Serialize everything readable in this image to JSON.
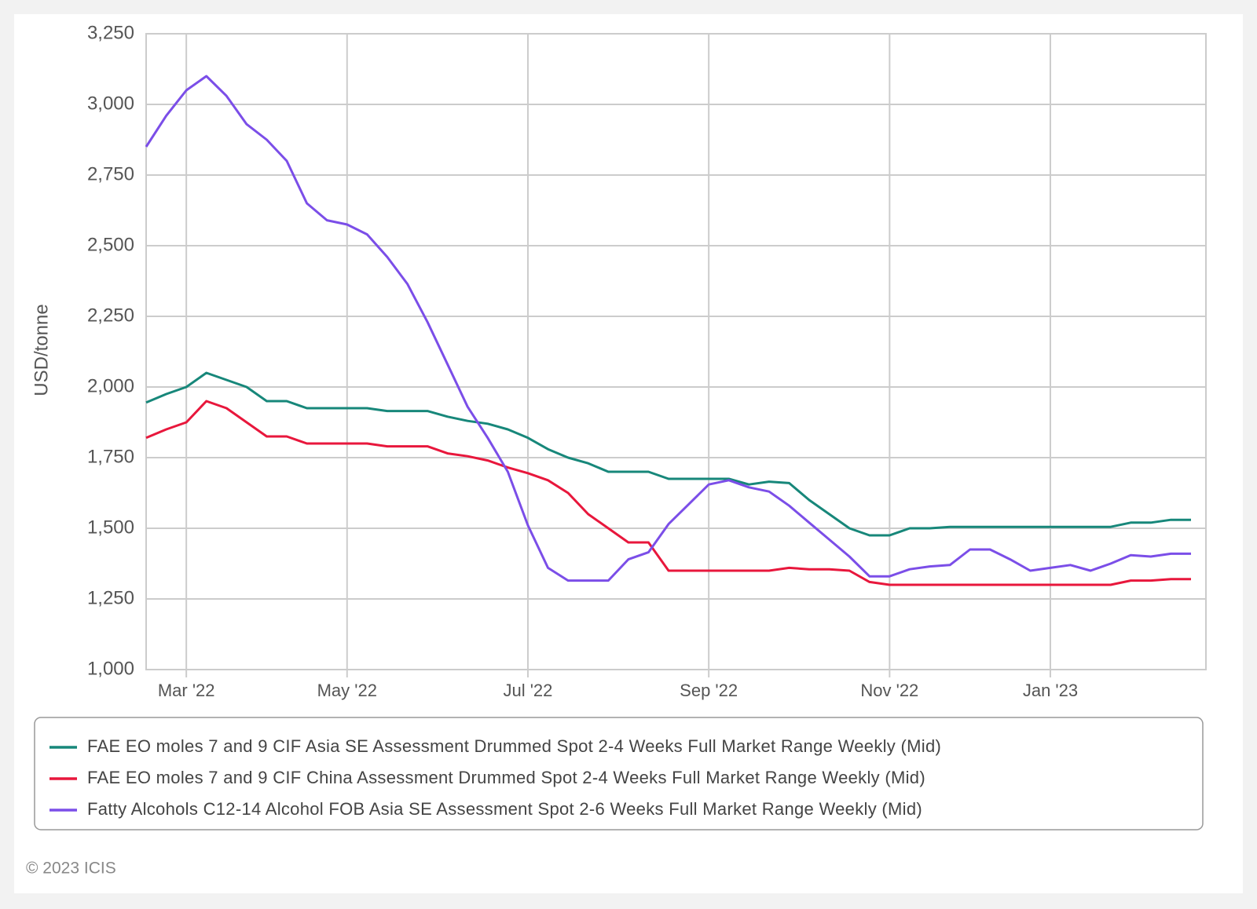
{
  "chart_data": {
    "type": "line",
    "y_label": "USD/tonne",
    "credit": "© 2023 ICIS",
    "legend": "bottom",
    "grid": true,
    "categories": [
      null,
      null,
      "Mar '22",
      null,
      null,
      null,
      null,
      null,
      null,
      null,
      "May '22",
      null,
      null,
      null,
      null,
      null,
      null,
      null,
      null,
      "Jul '22",
      null,
      null,
      null,
      null,
      null,
      null,
      null,
      null,
      "Sep '22",
      null,
      null,
      null,
      null,
      null,
      null,
      null,
      null,
      "Nov '22",
      null,
      null,
      null,
      null,
      null,
      null,
      null,
      "Jan '23",
      null,
      null,
      null,
      null,
      null,
      null,
      null
    ],
    "ylim": [
      1000,
      3250
    ],
    "yticks": [
      {
        "value": 1000,
        "label": "1,000"
      },
      {
        "value": 1250,
        "label": "1,250"
      },
      {
        "value": 1500,
        "label": "1,500"
      },
      {
        "value": 1750,
        "label": "1,750"
      },
      {
        "value": 2000,
        "label": "2,000"
      },
      {
        "value": 2250,
        "label": "2,250"
      },
      {
        "value": 2500,
        "label": "2,500"
      },
      {
        "value": 2750,
        "label": "2,750"
      },
      {
        "value": 3000,
        "label": "3,000"
      },
      {
        "value": 3250,
        "label": "3,250"
      }
    ],
    "series": [
      {
        "name": "FAE EO moles 7 and 9 CIF Asia SE Assessment Drummed Spot 2-4 Weeks Full Market Range Weekly (Mid)",
        "color": "#17877a",
        "values": [
          1945,
          1975,
          2000,
          2050,
          2025,
          2000,
          1950,
          1950,
          1925,
          1925,
          1925,
          1925,
          1915,
          1915,
          1915,
          1895,
          1880,
          1870,
          1850,
          1820,
          1780,
          1750,
          1730,
          1700,
          1700,
          1700,
          1675,
          1675,
          1675,
          1675,
          1655,
          1665,
          1660,
          1600,
          1550,
          1500,
          1475,
          1475,
          1500,
          1500,
          1505,
          1505,
          1505,
          1505,
          1505,
          1505,
          1505,
          1505,
          1505,
          1520,
          1520,
          1530,
          1530
        ]
      },
      {
        "name": "FAE EO moles 7 and 9 CIF China Assessment Drummed Spot 2-4 Weeks Full Market Range Weekly (Mid)",
        "color": "#e8173c",
        "values": [
          1820,
          1850,
          1875,
          1950,
          1925,
          1875,
          1825,
          1825,
          1800,
          1800,
          1800,
          1800,
          1790,
          1790,
          1790,
          1765,
          1755,
          1740,
          1715,
          1695,
          1670,
          1625,
          1550,
          1500,
          1450,
          1450,
          1350,
          1350,
          1350,
          1350,
          1350,
          1350,
          1360,
          1355,
          1355,
          1350,
          1310,
          1300,
          1300,
          1300,
          1300,
          1300,
          1300,
          1300,
          1300,
          1300,
          1300,
          1300,
          1300,
          1315,
          1315,
          1320,
          1320
        ]
      },
      {
        "name": "Fatty Alcohols C12-14 Alcohol FOB Asia SE Assessment Spot 2-6 Weeks Full Market Range Weekly (Mid)",
        "color": "#7b4ee8",
        "values": [
          2850,
          2960,
          3050,
          3100,
          3030,
          2930,
          2875,
          2800,
          2650,
          2590,
          2575,
          2540,
          2460,
          2365,
          2230,
          2080,
          1930,
          1820,
          1700,
          1510,
          1360,
          1315,
          1315,
          1315,
          1390,
          1415,
          1515,
          1585,
          1655,
          1670,
          1645,
          1630,
          1580,
          1520,
          1460,
          1400,
          1330,
          1330,
          1355,
          1365,
          1370,
          1425,
          1425,
          1390,
          1350,
          1360,
          1370,
          1350,
          1375,
          1405,
          1400,
          1410,
          1410
        ]
      }
    ]
  }
}
